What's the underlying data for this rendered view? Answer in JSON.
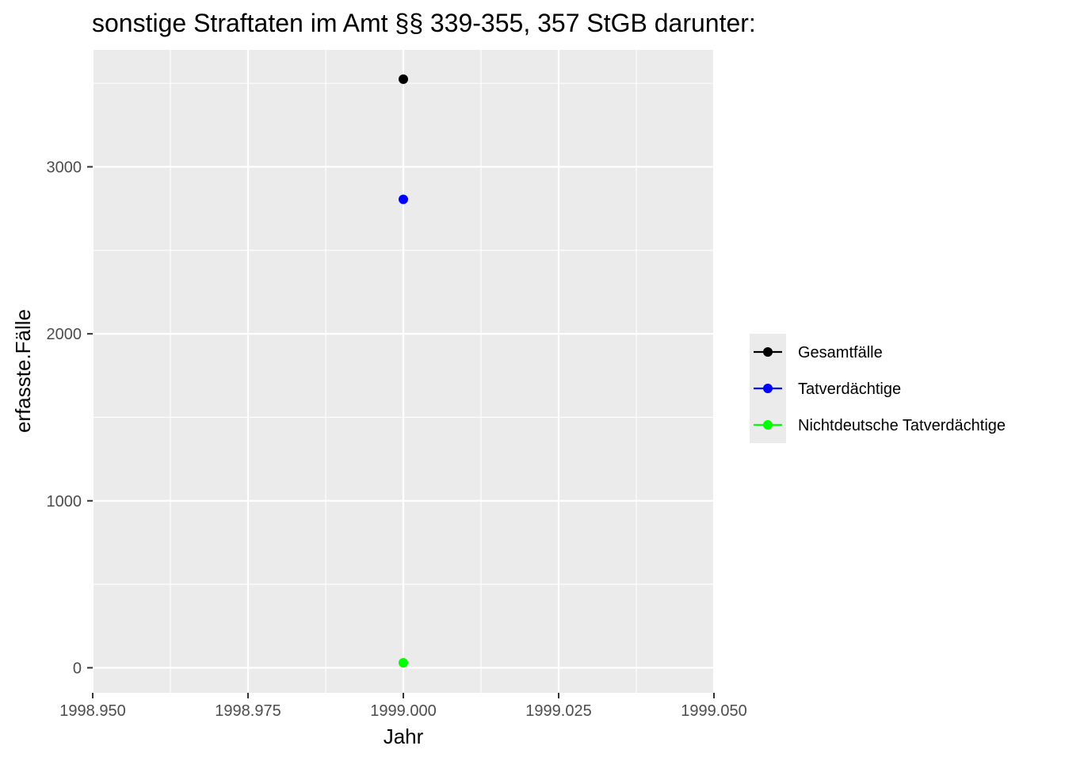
{
  "chart_data": {
    "type": "scatter",
    "title": "sonstige Straftaten im Amt §§ 339-355, 357 StGB darunter:",
    "xlabel": "Jahr",
    "ylabel": "erfasste.Fälle",
    "xlim": [
      1998.95,
      1999.05
    ],
    "ylim": [
      -150,
      3700
    ],
    "x_ticks": [
      1998.95,
      1998.975,
      1999.0,
      1999.025,
      1999.05
    ],
    "x_tick_labels": [
      "1998.950",
      "1998.975",
      "1999.000",
      "1999.025",
      "1999.050"
    ],
    "y_ticks": [
      0,
      1000,
      2000,
      3000
    ],
    "y_tick_labels": [
      "0",
      "1000",
      "2000",
      "3000"
    ],
    "grid": true,
    "legend_position": "right",
    "series": [
      {
        "name": "Gesamtfälle",
        "color": "#000000",
        "x": [
          1999.0
        ],
        "y": [
          3525
        ]
      },
      {
        "name": "Tatverdächtige",
        "color": "#0000ff",
        "x": [
          1999.0
        ],
        "y": [
          2805
        ]
      },
      {
        "name": "Nichtdeutsche Tatverdächtige",
        "color": "#00ff00",
        "x": [
          1999.0
        ],
        "y": [
          30
        ]
      }
    ]
  }
}
